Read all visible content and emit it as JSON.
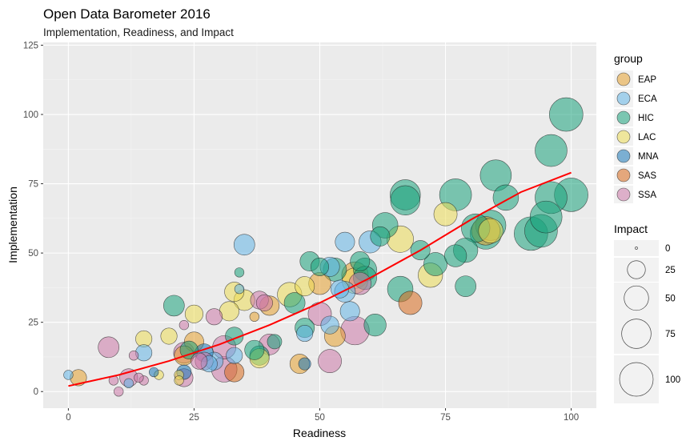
{
  "chart_data": {
    "type": "scatter",
    "title": "Open Data Barometer 2016",
    "subtitle": "Implementation, Readiness, and Impact",
    "xlabel": "Readiness",
    "ylabel": "Implementation",
    "xlim": [
      -5,
      105
    ],
    "ylim": [
      -6,
      126
    ],
    "xticks": [
      0,
      25,
      50,
      75,
      100
    ],
    "yticks": [
      0,
      25,
      50,
      75,
      100,
      125
    ],
    "grid": true,
    "legend_position": "right",
    "color_legend": {
      "title": "group",
      "entries": [
        {
          "name": "EAP",
          "color": "#E5A12E"
        },
        {
          "name": "ECA",
          "color": "#62B4E6"
        },
        {
          "name": "HIC",
          "color": "#1AA37B"
        },
        {
          "name": "LAC",
          "color": "#EDDC56"
        },
        {
          "name": "MNA",
          "color": "#1A78B8"
        },
        {
          "name": "SAS",
          "color": "#D86A1C"
        },
        {
          "name": "SSA",
          "color": "#CC78A8"
        }
      ]
    },
    "size_legend": {
      "title": "Impact",
      "values": [
        0,
        25,
        50,
        75,
        100
      ]
    },
    "trend_line": {
      "color": "#FF0000",
      "points": [
        [
          0,
          2
        ],
        [
          10,
          6
        ],
        [
          20,
          11
        ],
        [
          30,
          17
        ],
        [
          40,
          24
        ],
        [
          50,
          32
        ],
        [
          60,
          41
        ],
        [
          70,
          51
        ],
        [
          80,
          62
        ],
        [
          90,
          72
        ],
        [
          100,
          79
        ]
      ]
    },
    "points": [
      {
        "x": 99,
        "y": 100,
        "impact": 100,
        "group": "HIC"
      },
      {
        "x": 96,
        "y": 87,
        "impact": 90,
        "group": "HIC"
      },
      {
        "x": 100,
        "y": 71,
        "impact": 100,
        "group": "HIC"
      },
      {
        "x": 96,
        "y": 70,
        "impact": 90,
        "group": "HIC"
      },
      {
        "x": 95,
        "y": 63,
        "impact": 90,
        "group": "HIC"
      },
      {
        "x": 94,
        "y": 58,
        "impact": 95,
        "group": "HIC"
      },
      {
        "x": 92,
        "y": 57,
        "impact": 100,
        "group": "HIC"
      },
      {
        "x": 85,
        "y": 78,
        "impact": 85,
        "group": "HIC"
      },
      {
        "x": 87,
        "y": 70,
        "impact": 55,
        "group": "HIC"
      },
      {
        "x": 77,
        "y": 71,
        "impact": 90,
        "group": "HIC"
      },
      {
        "x": 67,
        "y": 71,
        "impact": 80,
        "group": "HIC"
      },
      {
        "x": 67,
        "y": 69,
        "impact": 75,
        "group": "HIC"
      },
      {
        "x": 84,
        "y": 60,
        "impact": 80,
        "group": "HIC"
      },
      {
        "x": 83,
        "y": 57,
        "impact": 85,
        "group": "HIC"
      },
      {
        "x": 83,
        "y": 58,
        "impact": 70,
        "group": "EAP"
      },
      {
        "x": 84,
        "y": 58,
        "impact": 50,
        "group": "LAC"
      },
      {
        "x": 81,
        "y": 59,
        "impact": 70,
        "group": "HIC"
      },
      {
        "x": 79,
        "y": 51,
        "impact": 50,
        "group": "HIC"
      },
      {
        "x": 77,
        "y": 49,
        "impact": 40,
        "group": "HIC"
      },
      {
        "x": 79,
        "y": 38,
        "impact": 35,
        "group": "HIC"
      },
      {
        "x": 75,
        "y": 64,
        "impact": 45,
        "group": "LAC"
      },
      {
        "x": 72,
        "y": 42,
        "impact": 50,
        "group": "LAC"
      },
      {
        "x": 73,
        "y": 46,
        "impact": 45,
        "group": "HIC"
      },
      {
        "x": 70,
        "y": 51,
        "impact": 30,
        "group": "HIC"
      },
      {
        "x": 68,
        "y": 32,
        "impact": 45,
        "group": "SAS"
      },
      {
        "x": 66,
        "y": 55,
        "impact": 60,
        "group": "LAC"
      },
      {
        "x": 66,
        "y": 37,
        "impact": 55,
        "group": "HIC"
      },
      {
        "x": 63,
        "y": 60,
        "impact": 55,
        "group": "HIC"
      },
      {
        "x": 62,
        "y": 56,
        "impact": 30,
        "group": "HIC"
      },
      {
        "x": 61,
        "y": 24,
        "impact": 40,
        "group": "HIC"
      },
      {
        "x": 60,
        "y": 54,
        "impact": 40,
        "group": "ECA"
      },
      {
        "x": 59,
        "y": 44,
        "impact": 45,
        "group": "HIC"
      },
      {
        "x": 59,
        "y": 41,
        "impact": 45,
        "group": "HIC"
      },
      {
        "x": 58,
        "y": 47,
        "impact": 30,
        "group": "HIC"
      },
      {
        "x": 58,
        "y": 39,
        "impact": 40,
        "group": "SSA"
      },
      {
        "x": 57,
        "y": 42,
        "impact": 60,
        "group": "EAP"
      },
      {
        "x": 57,
        "y": 40,
        "impact": 55,
        "group": "LAC"
      },
      {
        "x": 57,
        "y": 22,
        "impact": 70,
        "group": "SSA"
      },
      {
        "x": 56,
        "y": 29,
        "impact": 30,
        "group": "ECA"
      },
      {
        "x": 55,
        "y": 54,
        "impact": 30,
        "group": "ECA"
      },
      {
        "x": 55,
        "y": 36,
        "impact": 35,
        "group": "ECA"
      },
      {
        "x": 54,
        "y": 37,
        "impact": 25,
        "group": "ECA"
      },
      {
        "x": 53,
        "y": 44,
        "impact": 45,
        "group": "HIC"
      },
      {
        "x": 52,
        "y": 45,
        "impact": 30,
        "group": "ECA"
      },
      {
        "x": 52,
        "y": 24,
        "impact": 25,
        "group": "ECA"
      },
      {
        "x": 53,
        "y": 20,
        "impact": 35,
        "group": "EAP"
      },
      {
        "x": 52,
        "y": 11,
        "impact": 45,
        "group": "SSA"
      },
      {
        "x": 50,
        "y": 45,
        "impact": 25,
        "group": "HIC"
      },
      {
        "x": 50,
        "y": 39,
        "impact": 40,
        "group": "EAP"
      },
      {
        "x": 50,
        "y": 28,
        "impact": 45,
        "group": "SSA"
      },
      {
        "x": 48,
        "y": 47,
        "impact": 30,
        "group": "HIC"
      },
      {
        "x": 47,
        "y": 38,
        "impact": 30,
        "group": "LAC"
      },
      {
        "x": 47,
        "y": 23,
        "impact": 30,
        "group": "HIC"
      },
      {
        "x": 47,
        "y": 21,
        "impact": 20,
        "group": "ECA"
      },
      {
        "x": 47,
        "y": 10,
        "impact": 10,
        "group": "MNA"
      },
      {
        "x": 46,
        "y": 10,
        "impact": 30,
        "group": "EAP"
      },
      {
        "x": 45,
        "y": 32,
        "impact": 35,
        "group": "HIC"
      },
      {
        "x": 44,
        "y": 35,
        "impact": 50,
        "group": "LAC"
      },
      {
        "x": 41,
        "y": 18,
        "impact": 15,
        "group": "HIC"
      },
      {
        "x": 40,
        "y": 31,
        "impact": 30,
        "group": "EAP"
      },
      {
        "x": 40,
        "y": 17,
        "impact": 35,
        "group": "SSA"
      },
      {
        "x": 39,
        "y": 32,
        "impact": 20,
        "group": "SSA"
      },
      {
        "x": 38,
        "y": 33,
        "impact": 25,
        "group": "SSA"
      },
      {
        "x": 38,
        "y": 13,
        "impact": 30,
        "group": "HIC"
      },
      {
        "x": 38,
        "y": 12,
        "impact": 30,
        "group": "LAC"
      },
      {
        "x": 37,
        "y": 27,
        "impact": 5,
        "group": "EAP"
      },
      {
        "x": 37,
        "y": 15,
        "impact": 30,
        "group": "HIC"
      },
      {
        "x": 35,
        "y": 53,
        "impact": 35,
        "group": "ECA"
      },
      {
        "x": 35,
        "y": 33,
        "impact": 35,
        "group": "LAC"
      },
      {
        "x": 34,
        "y": 43,
        "impact": 5,
        "group": "HIC"
      },
      {
        "x": 34,
        "y": 37,
        "impact": 5,
        "group": "ECA"
      },
      {
        "x": 33,
        "y": 36,
        "impact": 30,
        "group": "LAC"
      },
      {
        "x": 33,
        "y": 20,
        "impact": 25,
        "group": "HIC"
      },
      {
        "x": 33,
        "y": 13,
        "impact": 20,
        "group": "ECA"
      },
      {
        "x": 33,
        "y": 7,
        "impact": 30,
        "group": "SAS"
      },
      {
        "x": 32,
        "y": 29,
        "impact": 30,
        "group": "LAC"
      },
      {
        "x": 31,
        "y": 16,
        "impact": 45,
        "group": "SSA"
      },
      {
        "x": 31,
        "y": 8,
        "impact": 55,
        "group": "SSA"
      },
      {
        "x": 29,
        "y": 27,
        "impact": 20,
        "group": "SSA"
      },
      {
        "x": 29,
        "y": 11,
        "impact": 25,
        "group": "ECA"
      },
      {
        "x": 28,
        "y": 10,
        "impact": 20,
        "group": "ECA"
      },
      {
        "x": 27,
        "y": 14,
        "impact": 25,
        "group": "MNA"
      },
      {
        "x": 27,
        "y": 11,
        "impact": 25,
        "group": "SSA"
      },
      {
        "x": 26,
        "y": 11,
        "impact": 20,
        "group": "SSA"
      },
      {
        "x": 25,
        "y": 28,
        "impact": 25,
        "group": "LAC"
      },
      {
        "x": 25,
        "y": 18,
        "impact": 30,
        "group": "EAP"
      },
      {
        "x": 24,
        "y": 15,
        "impact": 25,
        "group": "HIC"
      },
      {
        "x": 23,
        "y": 14,
        "impact": 35,
        "group": "SSA"
      },
      {
        "x": 23,
        "y": 13,
        "impact": 30,
        "group": "EAP"
      },
      {
        "x": 23,
        "y": 7,
        "impact": 15,
        "group": "MNA"
      },
      {
        "x": 23,
        "y": 5,
        "impact": 25,
        "group": "SSA"
      },
      {
        "x": 23,
        "y": 24,
        "impact": 5,
        "group": "SSA"
      },
      {
        "x": 22,
        "y": 6,
        "impact": 5,
        "group": "LAC"
      },
      {
        "x": 22,
        "y": 4,
        "impact": 5,
        "group": "LAC"
      },
      {
        "x": 21,
        "y": 31,
        "impact": 35,
        "group": "HIC"
      },
      {
        "x": 20,
        "y": 20,
        "impact": 20,
        "group": "LAC"
      },
      {
        "x": 18,
        "y": 6,
        "impact": 5,
        "group": "LAC"
      },
      {
        "x": 17,
        "y": 7,
        "impact": 5,
        "group": "MNA"
      },
      {
        "x": 15,
        "y": 19,
        "impact": 20,
        "group": "LAC"
      },
      {
        "x": 15,
        "y": 14,
        "impact": 20,
        "group": "ECA"
      },
      {
        "x": 15,
        "y": 4,
        "impact": 5,
        "group": "SSA"
      },
      {
        "x": 14,
        "y": 5,
        "impact": 5,
        "group": "SSA"
      },
      {
        "x": 13,
        "y": 13,
        "impact": 5,
        "group": "SSA"
      },
      {
        "x": 12,
        "y": 5,
        "impact": 25,
        "group": "SSA"
      },
      {
        "x": 12,
        "y": 3,
        "impact": 5,
        "group": "ECA"
      },
      {
        "x": 10,
        "y": 0,
        "impact": 5,
        "group": "SSA"
      },
      {
        "x": 9,
        "y": 4,
        "impact": 5,
        "group": "SSA"
      },
      {
        "x": 8,
        "y": 16,
        "impact": 35,
        "group": "SSA"
      },
      {
        "x": 2,
        "y": 5,
        "impact": 20,
        "group": "EAP"
      },
      {
        "x": 0,
        "y": 6,
        "impact": 5,
        "group": "ECA"
      }
    ]
  }
}
